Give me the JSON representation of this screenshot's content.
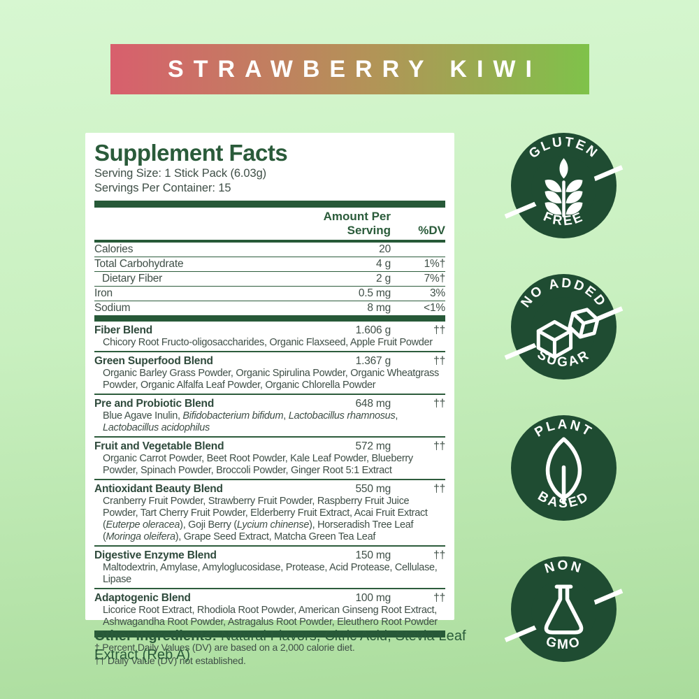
{
  "banner": {
    "title": "STRAWBERRY KIWI"
  },
  "colors": {
    "banner_gradient_start": "#d85f6d",
    "banner_gradient_end": "#7fc24a",
    "background_top": "#d7f7d1",
    "background_bottom": "#aadc9c",
    "heading_green": "#2a5b3a",
    "rule_green": "#275938",
    "body_text": "#3f4f47",
    "badge_green": "#1f4c32",
    "badge_text": "#ffffff",
    "panel_bg": "#ffffff"
  },
  "panel": {
    "title": "Supplement Facts",
    "serving_size": "Serving Size: 1 Stick Pack (6.03g)",
    "servings_per_container": "Servings Per Container: 15",
    "columns": {
      "amount": "Amount Per Serving",
      "dv": "%DV"
    },
    "nutrients": [
      {
        "name": "Calories",
        "amount": "20",
        "dv": "",
        "indent": false
      },
      {
        "name": "Total Carbohydrate",
        "amount": "4 g",
        "dv": "1%†",
        "indent": false
      },
      {
        "name": "Dietary Fiber",
        "amount": "2 g",
        "dv": "7%†",
        "indent": true
      },
      {
        "name": "Iron",
        "amount": "0.5 mg",
        "dv": "3%",
        "indent": false
      },
      {
        "name": "Sodium",
        "amount": "8 mg",
        "dv": "<1%",
        "indent": false
      }
    ],
    "blends": [
      {
        "name": "Fiber Blend",
        "amount": "1.606 g",
        "dv": "††",
        "ingredients": "Chicory Root Fructo-oligosaccharides, Organic Flaxseed, Apple Fruit Powder"
      },
      {
        "name": "Green Superfood Blend",
        "amount": "1.367 g",
        "dv": "††",
        "ingredients": "Organic Barley Grass Powder, Organic Spirulina Powder, Organic Wheatgrass Powder, Organic Alfalfa Leaf Powder, Organic Chlorella Powder"
      },
      {
        "name": "Pre and Probiotic Blend",
        "amount": "648 mg",
        "dv": "††",
        "ingredients": "Blue Agave Inulin, *Bifidobacterium bifidum*, *Lactobacillus rhamnosus*, *Lactobacillus acidophilus*"
      },
      {
        "name": "Fruit and Vegetable Blend",
        "amount": "572 mg",
        "dv": "††",
        "ingredients": "Organic Carrot Powder, Beet Root Powder, Kale Leaf Powder, Blueberry Powder, Spinach Powder, Broccoli Powder, Ginger Root 5:1 Extract"
      },
      {
        "name": "Antioxidant Beauty Blend",
        "amount": "550 mg",
        "dv": "††",
        "ingredients": "Cranberry Fruit Powder, Strawberry Fruit Powder, Raspberry Fruit Juice Powder, Tart Cherry Fruit Powder, Elderberry Fruit Extract, Acai Fruit Extract (*Euterpe oleracea*), Goji Berry (*Lycium chinense*), Horseradish Tree Leaf (*Moringa oleifera*), Grape Seed Extract, Matcha Green Tea Leaf"
      },
      {
        "name": "Digestive Enzyme Blend",
        "amount": "150 mg",
        "dv": "††",
        "ingredients": "Maltodextrin, Amylase, Amyloglucosidase, Protease, Acid Protease, Cellulase, Lipase"
      },
      {
        "name": "Adaptogenic Blend",
        "amount": "100 mg",
        "dv": "††",
        "ingredients": "Licorice Root Extract, Rhodiola Root Powder, American Ginseng Root Extract, Ashwagandha Root Powder, Astragalus Root Powder, Eleuthero Root Powder"
      }
    ],
    "footnotes": [
      "† Percent Daily Values (DV) are based on a 2,000 calorie diet.",
      "†† Daily Value (DV) not established."
    ]
  },
  "other_ingredients": {
    "label": "Other Ingredients:",
    "text": " Natural Flavors, Citric Acid,  Stevia Leaf Extract (Reb A)"
  },
  "badges": [
    {
      "top": "GLUTEN",
      "bottom": "FREE",
      "icon": "wheat-icon",
      "slash": true
    },
    {
      "top": "NO ADDED",
      "bottom": "SUGAR",
      "icon": "sugar-cubes-icon",
      "slash": true
    },
    {
      "top": "PLANT",
      "bottom": "BASED",
      "icon": "leaf-icon",
      "slash": false
    },
    {
      "top": "NON",
      "bottom": "GMO",
      "icon": "flask-icon",
      "slash": true
    }
  ]
}
